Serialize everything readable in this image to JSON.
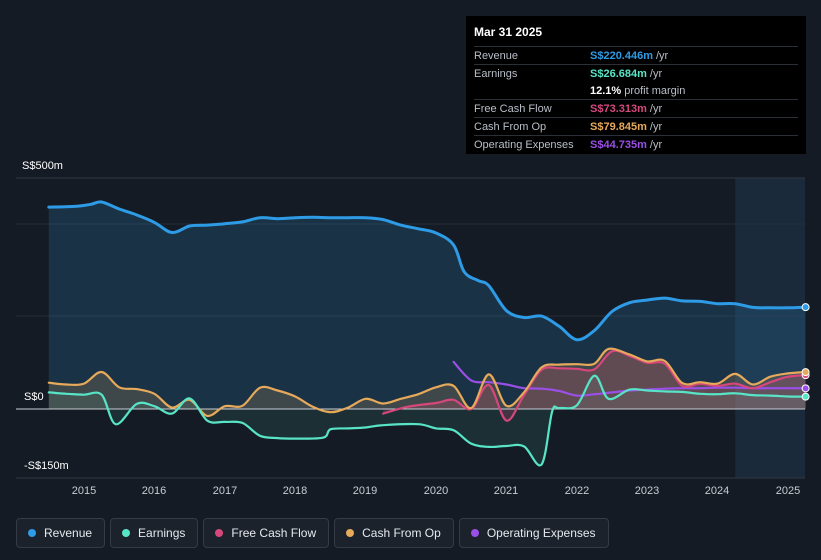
{
  "tooltip": {
    "date": "Mar 31 2025",
    "rows": [
      {
        "label": "Revenue",
        "value": "S$220.446m",
        "unit": "/yr",
        "color": "#2e9be6"
      },
      {
        "label": "Earnings",
        "value": "S$26.684m",
        "unit": "/yr",
        "color": "#58e5c7"
      },
      {
        "label": "",
        "value": "12.1%",
        "unit": "profit margin",
        "color": "#ffffff"
      },
      {
        "label": "Free Cash Flow",
        "value": "S$73.313m",
        "unit": "/yr",
        "color": "#d6477c"
      },
      {
        "label": "Cash From Op",
        "value": "S$79.845m",
        "unit": "/yr",
        "color": "#e7a95a"
      },
      {
        "label": "Operating Expenses",
        "value": "S$44.735m",
        "unit": "/yr",
        "color": "#9a4fe6"
      }
    ]
  },
  "legend": [
    {
      "label": "Revenue",
      "color": "#2e9be6"
    },
    {
      "label": "Earnings",
      "color": "#58e5c7"
    },
    {
      "label": "Free Cash Flow",
      "color": "#d6477c"
    },
    {
      "label": "Cash From Op",
      "color": "#e7a95a"
    },
    {
      "label": "Operating Expenses",
      "color": "#9a4fe6"
    }
  ],
  "chart_data": {
    "type": "area",
    "title": "",
    "ylim": [
      -150,
      500
    ],
    "xlim": [
      2014.0,
      2025.25
    ],
    "y_tick_labels": [
      {
        "value": 500,
        "label": "S$500m"
      },
      {
        "value": 0,
        "label": "S$0"
      },
      {
        "value": -150,
        "label": "-S$150m"
      }
    ],
    "x_tick_labels": [
      {
        "value": 2015,
        "label": "2015"
      },
      {
        "value": 2016,
        "label": "2016"
      },
      {
        "value": 2017,
        "label": "2017"
      },
      {
        "value": 2018,
        "label": "2018"
      },
      {
        "value": 2019,
        "label": "2019"
      },
      {
        "value": 2020,
        "label": "2020"
      },
      {
        "value": 2021,
        "label": "2021"
      },
      {
        "value": 2022,
        "label": "2022"
      },
      {
        "value": 2023,
        "label": "2023"
      },
      {
        "value": 2024,
        "label": "2024"
      },
      {
        "value": 2025,
        "label": "2025"
      }
    ],
    "highlight_range": [
      2024.25,
      2025.25
    ],
    "series": [
      {
        "name": "Revenue",
        "color": "#2e9be6",
        "fill": true,
        "points": [
          [
            2014.5,
            437
          ],
          [
            2014.9,
            439
          ],
          [
            2015.1,
            443
          ],
          [
            2015.25,
            448
          ],
          [
            2015.5,
            433
          ],
          [
            2015.75,
            420
          ],
          [
            2016.0,
            404
          ],
          [
            2016.25,
            382
          ],
          [
            2016.5,
            396
          ],
          [
            2016.75,
            398
          ],
          [
            2017.0,
            401
          ],
          [
            2017.25,
            405
          ],
          [
            2017.5,
            414
          ],
          [
            2017.75,
            412
          ],
          [
            2018.0,
            414
          ],
          [
            2018.25,
            415
          ],
          [
            2018.5,
            414
          ],
          [
            2018.75,
            414
          ],
          [
            2019.0,
            414
          ],
          [
            2019.25,
            410
          ],
          [
            2019.5,
            398
          ],
          [
            2019.75,
            390
          ],
          [
            2020.0,
            381
          ],
          [
            2020.25,
            355
          ],
          [
            2020.4,
            297
          ],
          [
            2020.6,
            278
          ],
          [
            2020.75,
            267
          ],
          [
            2021.0,
            213
          ],
          [
            2021.25,
            198
          ],
          [
            2021.5,
            201
          ],
          [
            2021.75,
            179
          ],
          [
            2022.0,
            150
          ],
          [
            2022.25,
            170
          ],
          [
            2022.5,
            211
          ],
          [
            2022.75,
            230
          ],
          [
            2023.0,
            236
          ],
          [
            2023.25,
            240
          ],
          [
            2023.5,
            234
          ],
          [
            2023.75,
            233
          ],
          [
            2024.0,
            228
          ],
          [
            2024.25,
            228
          ],
          [
            2024.5,
            220
          ],
          [
            2024.75,
            219
          ],
          [
            2025.0,
            219
          ],
          [
            2025.25,
            220.446
          ]
        ]
      },
      {
        "name": "Earnings",
        "color": "#58e5c7",
        "fill": true,
        "points": [
          [
            2014.5,
            36
          ],
          [
            2014.75,
            33
          ],
          [
            2015.0,
            31
          ],
          [
            2015.25,
            31
          ],
          [
            2015.45,
            -33
          ],
          [
            2015.75,
            11
          ],
          [
            2016.0,
            6
          ],
          [
            2016.25,
            -10
          ],
          [
            2016.5,
            23
          ],
          [
            2016.75,
            -25
          ],
          [
            2017.0,
            -28
          ],
          [
            2017.25,
            -30
          ],
          [
            2017.5,
            -58
          ],
          [
            2017.75,
            -63
          ],
          [
            2018.0,
            -64
          ],
          [
            2018.4,
            -62
          ],
          [
            2018.5,
            -44
          ],
          [
            2018.75,
            -42
          ],
          [
            2019.0,
            -40
          ],
          [
            2019.25,
            -35
          ],
          [
            2019.75,
            -33
          ],
          [
            2020.0,
            -42
          ],
          [
            2020.25,
            -46
          ],
          [
            2020.5,
            -75
          ],
          [
            2020.75,
            -82
          ],
          [
            2021.0,
            -80
          ],
          [
            2021.25,
            -81
          ],
          [
            2021.5,
            -120
          ],
          [
            2021.65,
            -5
          ],
          [
            2021.75,
            2
          ],
          [
            2022.0,
            8
          ],
          [
            2022.25,
            72
          ],
          [
            2022.45,
            22
          ],
          [
            2022.75,
            42
          ],
          [
            2023.0,
            40
          ],
          [
            2023.25,
            38
          ],
          [
            2023.5,
            37
          ],
          [
            2023.75,
            33
          ],
          [
            2024.0,
            32
          ],
          [
            2024.25,
            34
          ],
          [
            2024.5,
            30
          ],
          [
            2024.75,
            29
          ],
          [
            2025.0,
            27
          ],
          [
            2025.25,
            26.684
          ]
        ]
      },
      {
        "name": "Free Cash Flow",
        "color": "#d6477c",
        "fill": true,
        "points": [
          [
            2019.25,
            -10
          ],
          [
            2019.6,
            5
          ],
          [
            2020.0,
            13
          ],
          [
            2020.25,
            20
          ],
          [
            2020.5,
            0
          ],
          [
            2020.75,
            52
          ],
          [
            2021.0,
            -25
          ],
          [
            2021.25,
            30
          ],
          [
            2021.5,
            85
          ],
          [
            2021.75,
            88
          ],
          [
            2022.0,
            87
          ],
          [
            2022.25,
            86
          ],
          [
            2022.5,
            125
          ],
          [
            2022.75,
            115
          ],
          [
            2023.0,
            100
          ],
          [
            2023.25,
            98
          ],
          [
            2023.5,
            50
          ],
          [
            2023.75,
            55
          ],
          [
            2024.0,
            50
          ],
          [
            2024.25,
            55
          ],
          [
            2024.5,
            45
          ],
          [
            2024.75,
            58
          ],
          [
            2025.0,
            70
          ],
          [
            2025.25,
            73.313
          ]
        ]
      },
      {
        "name": "Cash From Op",
        "color": "#e7a95a",
        "fill": true,
        "points": [
          [
            2014.5,
            57
          ],
          [
            2014.75,
            53
          ],
          [
            2015.0,
            55
          ],
          [
            2015.25,
            80
          ],
          [
            2015.5,
            47
          ],
          [
            2015.75,
            43
          ],
          [
            2016.0,
            33
          ],
          [
            2016.25,
            3
          ],
          [
            2016.5,
            20
          ],
          [
            2016.75,
            -15
          ],
          [
            2017.0,
            6
          ],
          [
            2017.25,
            7
          ],
          [
            2017.5,
            46
          ],
          [
            2017.75,
            40
          ],
          [
            2018.0,
            27
          ],
          [
            2018.25,
            5
          ],
          [
            2018.5,
            -7
          ],
          [
            2018.75,
            3
          ],
          [
            2019.0,
            22
          ],
          [
            2019.25,
            12
          ],
          [
            2019.5,
            22
          ],
          [
            2019.75,
            32
          ],
          [
            2020.0,
            47
          ],
          [
            2020.25,
            50
          ],
          [
            2020.5,
            2
          ],
          [
            2020.75,
            75
          ],
          [
            2021.0,
            7
          ],
          [
            2021.25,
            36
          ],
          [
            2021.5,
            90
          ],
          [
            2021.75,
            96
          ],
          [
            2022.0,
            97
          ],
          [
            2022.25,
            98
          ],
          [
            2022.45,
            130
          ],
          [
            2022.75,
            118
          ],
          [
            2023.0,
            103
          ],
          [
            2023.25,
            104
          ],
          [
            2023.5,
            56
          ],
          [
            2023.75,
            58
          ],
          [
            2024.0,
            55
          ],
          [
            2024.25,
            76
          ],
          [
            2024.5,
            53
          ],
          [
            2024.75,
            70
          ],
          [
            2025.0,
            77
          ],
          [
            2025.25,
            79.845
          ]
        ]
      },
      {
        "name": "Operating Expenses",
        "color": "#9a4fe6",
        "fill": false,
        "points": [
          [
            2020.25,
            102
          ],
          [
            2020.5,
            62
          ],
          [
            2020.75,
            58
          ],
          [
            2021.0,
            53
          ],
          [
            2021.25,
            45
          ],
          [
            2021.5,
            44
          ],
          [
            2021.75,
            39
          ],
          [
            2022.0,
            29
          ],
          [
            2022.25,
            32
          ],
          [
            2022.5,
            36
          ],
          [
            2022.75,
            40
          ],
          [
            2023.0,
            42
          ],
          [
            2023.25,
            44
          ],
          [
            2023.5,
            45
          ],
          [
            2023.75,
            45
          ],
          [
            2024.0,
            46
          ],
          [
            2024.25,
            46
          ],
          [
            2024.5,
            45
          ],
          [
            2024.75,
            45
          ],
          [
            2025.0,
            45
          ],
          [
            2025.25,
            44.735
          ]
        ]
      }
    ]
  }
}
